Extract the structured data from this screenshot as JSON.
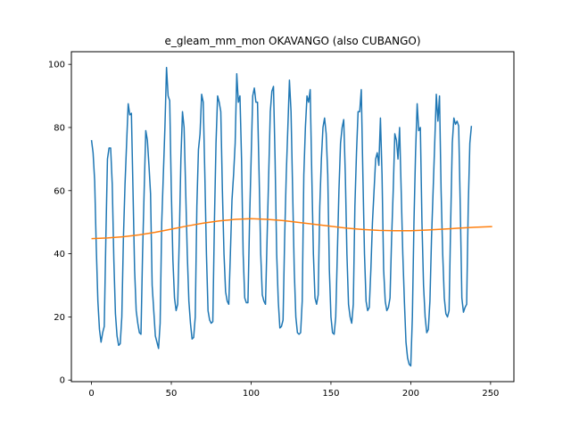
{
  "chart_data": {
    "type": "line",
    "title": "e_gleam_mm_mon OKAVANGO (also CUBANGO)",
    "xlabel": "",
    "ylabel": "",
    "xlim": [
      -12.6,
      264.6
    ],
    "ylim": [
      -0.5,
      104
    ],
    "xticks": [
      0,
      50,
      100,
      150,
      200,
      250
    ],
    "yticks": [
      0,
      20,
      40,
      60,
      80,
      100
    ],
    "grid": false,
    "series": [
      {
        "color": "#1f77b4",
        "keypoints": [
          [
            0,
            76
          ],
          [
            1,
            72
          ],
          [
            2,
            63
          ],
          [
            3,
            42
          ],
          [
            4,
            25
          ],
          [
            5,
            16
          ],
          [
            6,
            12
          ],
          [
            7,
            15
          ],
          [
            8,
            17
          ],
          [
            9,
            45
          ],
          [
            10,
            70
          ],
          [
            11,
            73.5
          ],
          [
            12,
            73.5
          ],
          [
            13,
            62
          ],
          [
            14,
            38
          ],
          [
            15,
            21
          ],
          [
            16,
            14
          ],
          [
            17,
            11
          ],
          [
            18,
            11.5
          ],
          [
            19,
            20
          ],
          [
            20,
            45
          ],
          [
            21,
            62
          ],
          [
            22,
            75
          ],
          [
            23,
            87.5
          ],
          [
            24,
            84
          ],
          [
            25,
            84.5
          ],
          [
            26,
            60
          ],
          [
            27,
            35
          ],
          [
            28,
            22
          ],
          [
            29,
            18
          ],
          [
            30,
            15
          ],
          [
            31,
            14.5
          ],
          [
            32,
            40
          ],
          [
            33,
            60
          ],
          [
            34,
            79
          ],
          [
            35,
            76
          ],
          [
            36,
            68
          ],
          [
            37,
            59
          ],
          [
            38,
            30
          ],
          [
            39,
            22
          ],
          [
            40,
            14
          ],
          [
            41,
            12
          ],
          [
            42,
            10
          ],
          [
            43,
            18
          ],
          [
            44,
            50
          ],
          [
            45,
            65
          ],
          [
            46,
            80
          ],
          [
            47,
            99
          ],
          [
            48,
            90
          ],
          [
            49,
            88.5
          ],
          [
            50,
            60
          ],
          [
            51,
            38
          ],
          [
            52,
            26
          ],
          [
            53,
            22
          ],
          [
            54,
            24
          ],
          [
            55,
            45
          ],
          [
            56,
            70
          ],
          [
            57,
            85
          ],
          [
            58,
            80
          ],
          [
            59,
            60
          ],
          [
            60,
            40
          ],
          [
            61,
            25
          ],
          [
            62,
            18
          ],
          [
            63,
            13
          ],
          [
            64,
            13.5
          ],
          [
            65,
            20
          ],
          [
            66,
            55
          ],
          [
            67,
            73
          ],
          [
            68,
            78
          ],
          [
            69,
            90.5
          ],
          [
            70,
            88
          ],
          [
            71,
            65
          ],
          [
            72,
            40
          ],
          [
            73,
            22
          ],
          [
            74,
            19
          ],
          [
            75,
            18
          ],
          [
            76,
            18.5
          ],
          [
            77,
            50
          ],
          [
            78,
            75
          ],
          [
            79,
            90
          ],
          [
            80,
            88
          ],
          [
            81,
            85
          ],
          [
            82,
            60
          ],
          [
            83,
            40
          ],
          [
            84,
            28
          ],
          [
            85,
            25
          ],
          [
            86,
            24
          ],
          [
            87,
            40
          ],
          [
            88,
            57
          ],
          [
            89,
            65
          ],
          [
            90,
            75
          ],
          [
            91,
            97
          ],
          [
            92,
            88
          ],
          [
            93,
            90
          ],
          [
            94,
            70
          ],
          [
            95,
            40
          ],
          [
            96,
            26
          ],
          [
            97,
            24.5
          ],
          [
            98,
            24.5
          ],
          [
            99,
            50
          ],
          [
            100,
            70
          ],
          [
            101,
            90
          ],
          [
            102,
            92.5
          ],
          [
            103,
            88
          ],
          [
            104,
            88
          ],
          [
            105,
            65
          ],
          [
            106,
            40
          ],
          [
            107,
            27
          ],
          [
            108,
            25
          ],
          [
            109,
            24
          ],
          [
            110,
            45
          ],
          [
            111,
            65
          ],
          [
            112,
            85
          ],
          [
            113,
            91.5
          ],
          [
            114,
            93
          ],
          [
            115,
            70
          ],
          [
            116,
            40
          ],
          [
            117,
            25
          ],
          [
            118,
            16.5
          ],
          [
            119,
            17
          ],
          [
            120,
            19
          ],
          [
            121,
            45
          ],
          [
            122,
            65
          ],
          [
            123,
            80
          ],
          [
            124,
            95
          ],
          [
            125,
            85
          ],
          [
            126,
            60
          ],
          [
            127,
            35
          ],
          [
            128,
            20
          ],
          [
            129,
            15
          ],
          [
            130,
            14.5
          ],
          [
            131,
            15
          ],
          [
            132,
            25
          ],
          [
            133,
            65
          ],
          [
            134,
            80
          ],
          [
            135,
            90
          ],
          [
            136,
            88
          ],
          [
            137,
            92
          ],
          [
            138,
            65
          ],
          [
            139,
            40
          ],
          [
            140,
            26
          ],
          [
            141,
            24
          ],
          [
            142,
            27
          ],
          [
            143,
            55
          ],
          [
            144,
            70
          ],
          [
            145,
            80
          ],
          [
            146,
            83
          ],
          [
            147,
            78
          ],
          [
            148,
            65
          ],
          [
            149,
            35
          ],
          [
            150,
            20
          ],
          [
            151,
            15
          ],
          [
            152,
            14.5
          ],
          [
            153,
            20
          ],
          [
            154,
            40
          ],
          [
            155,
            60
          ],
          [
            156,
            75
          ],
          [
            157,
            80
          ],
          [
            158,
            82.5
          ],
          [
            159,
            65
          ],
          [
            160,
            40
          ],
          [
            161,
            24
          ],
          [
            162,
            20
          ],
          [
            163,
            18
          ],
          [
            164,
            24
          ],
          [
            165,
            55
          ],
          [
            166,
            72
          ],
          [
            167,
            85
          ],
          [
            168,
            85
          ],
          [
            169,
            92
          ],
          [
            170,
            65
          ],
          [
            171,
            40
          ],
          [
            172,
            25
          ],
          [
            173,
            22
          ],
          [
            174,
            23
          ],
          [
            175,
            35
          ],
          [
            176,
            50
          ],
          [
            177,
            60
          ],
          [
            178,
            70
          ],
          [
            179,
            72
          ],
          [
            180,
            68
          ],
          [
            181,
            83
          ],
          [
            182,
            65
          ],
          [
            183,
            35
          ],
          [
            184,
            25
          ],
          [
            185,
            22
          ],
          [
            186,
            23
          ],
          [
            187,
            26
          ],
          [
            188,
            45
          ],
          [
            189,
            60
          ],
          [
            190,
            78
          ],
          [
            191,
            76
          ],
          [
            192,
            70
          ],
          [
            193,
            80
          ],
          [
            194,
            60
          ],
          [
            195,
            40
          ],
          [
            196,
            25
          ],
          [
            197,
            12
          ],
          [
            198,
            7
          ],
          [
            199,
            5
          ],
          [
            200,
            4.5
          ],
          [
            201,
            20
          ],
          [
            202,
            50
          ],
          [
            203,
            72
          ],
          [
            204,
            87.5
          ],
          [
            205,
            79
          ],
          [
            206,
            80
          ],
          [
            207,
            50
          ],
          [
            208,
            30
          ],
          [
            209,
            20
          ],
          [
            210,
            15
          ],
          [
            211,
            16
          ],
          [
            212,
            25
          ],
          [
            213,
            45
          ],
          [
            214,
            60
          ],
          [
            215,
            75
          ],
          [
            216,
            90.5
          ],
          [
            217,
            82
          ],
          [
            218,
            90
          ],
          [
            219,
            60
          ],
          [
            220,
            40
          ],
          [
            221,
            26
          ],
          [
            222,
            21
          ],
          [
            223,
            20
          ],
          [
            224,
            22
          ],
          [
            225,
            50
          ],
          [
            226,
            75
          ],
          [
            227,
            83
          ],
          [
            228,
            81
          ],
          [
            229,
            82
          ],
          [
            230,
            80.5
          ],
          [
            231,
            55
          ],
          [
            232,
            26
          ],
          [
            233,
            21.5
          ],
          [
            234,
            23
          ],
          [
            235,
            24
          ],
          [
            236,
            55
          ],
          [
            237,
            75
          ],
          [
            238,
            80.5
          ]
        ],
        "x_offset": 12,
        "x_scale": 1.0
      },
      {
        "color": "#ff7f0e",
        "points": [
          [
            0,
            44.8
          ],
          [
            10,
            45.0
          ],
          [
            20,
            45.4
          ],
          [
            30,
            46.0
          ],
          [
            40,
            46.8
          ],
          [
            50,
            47.8
          ],
          [
            60,
            48.8
          ],
          [
            70,
            49.7
          ],
          [
            80,
            50.4
          ],
          [
            90,
            50.9
          ],
          [
            100,
            51.1
          ],
          [
            110,
            50.9
          ],
          [
            120,
            50.5
          ],
          [
            130,
            49.9
          ],
          [
            140,
            49.3
          ],
          [
            150,
            48.7
          ],
          [
            160,
            48.1
          ],
          [
            170,
            47.7
          ],
          [
            180,
            47.4
          ],
          [
            190,
            47.3
          ],
          [
            200,
            47.3
          ],
          [
            210,
            47.5
          ],
          [
            220,
            47.8
          ],
          [
            230,
            48.1
          ],
          [
            240,
            48.4
          ],
          [
            251,
            48.6
          ]
        ]
      }
    ]
  }
}
